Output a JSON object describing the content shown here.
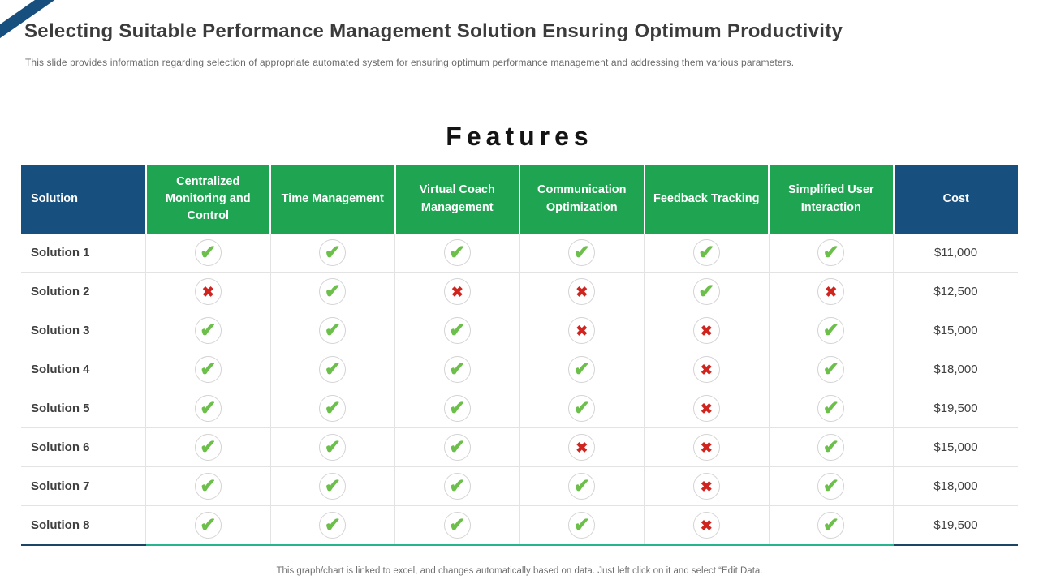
{
  "slide": {
    "title": "Selecting Suitable Performance Management Solution Ensuring Optimum Productivity",
    "subtitle": "This slide provides information regarding selection of appropriate automated system for ensuring optimum performance management and addressing them various parameters.",
    "footer_note": "This graph/chart is linked to excel,  and changes automatically based on data. Just left click on it and select “Edit Data."
  },
  "features_heading": "Features",
  "table": {
    "columns": [
      "Solution",
      "Centralized Monitoring and Control",
      "Time Management",
      "Virtual Coach Management",
      "Communication Optimization",
      "Feedback Tracking",
      "Simplified User Interaction",
      "Cost"
    ],
    "rows": [
      {
        "label": "Solution 1",
        "features": [
          true,
          true,
          true,
          true,
          true,
          true
        ],
        "cost": "$11,000"
      },
      {
        "label": "Solution 2",
        "features": [
          false,
          true,
          false,
          false,
          true,
          false
        ],
        "cost": "$12,500"
      },
      {
        "label": "Solution 3",
        "features": [
          true,
          true,
          true,
          false,
          false,
          true
        ],
        "cost": "$15,000"
      },
      {
        "label": "Solution 4",
        "features": [
          true,
          true,
          true,
          true,
          false,
          true
        ],
        "cost": "$18,000"
      },
      {
        "label": "Solution 5",
        "features": [
          true,
          true,
          true,
          true,
          false,
          true
        ],
        "cost": "$19,500"
      },
      {
        "label": "Solution 6",
        "features": [
          true,
          true,
          true,
          false,
          false,
          true
        ],
        "cost": "$15,000"
      },
      {
        "label": "Solution 7",
        "features": [
          true,
          true,
          true,
          true,
          false,
          true
        ],
        "cost": "$18,000"
      },
      {
        "label": "Solution 8",
        "features": [
          true,
          true,
          true,
          true,
          false,
          true
        ],
        "cost": "$19,500"
      }
    ]
  },
  "icons": {
    "check": "✔",
    "cross": "✖"
  },
  "colors": {
    "header_dark_blue": "#17507F",
    "header_green": "#1FA551",
    "bottom_line_teal": "#27B58D",
    "bottom_line_navy": "#1A4567",
    "check_green": "#6CBF4A",
    "cross_red": "#D0251F"
  }
}
